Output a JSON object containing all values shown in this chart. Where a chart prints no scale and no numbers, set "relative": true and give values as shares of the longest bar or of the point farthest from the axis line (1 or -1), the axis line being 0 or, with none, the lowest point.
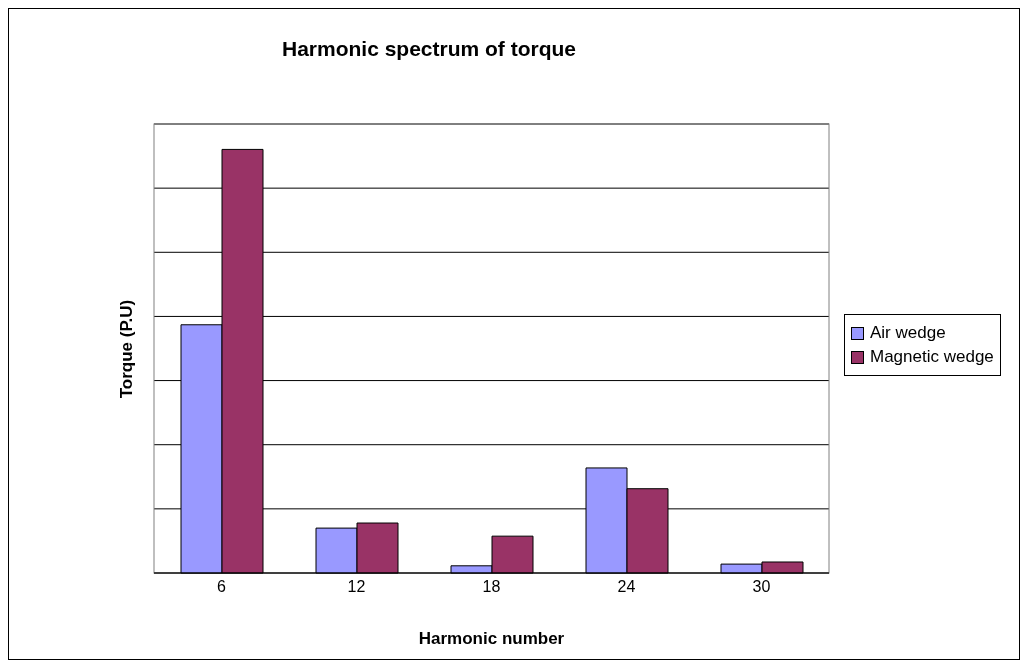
{
  "chart_data": {
    "type": "bar",
    "title": "Harmonic spectrum of torque",
    "xlabel": "Harmonic number",
    "ylabel": "Torque (P.U)",
    "categories": [
      "6",
      "12",
      "18",
      "24",
      "30"
    ],
    "relative": true,
    "grid": "y",
    "legend": "right",
    "series": [
      {
        "name": "Air wedge",
        "color": "#9999ff",
        "values": [
          0.586,
          0.106,
          0.017,
          0.248,
          0.021
        ]
      },
      {
        "name": "Magnetic wedge",
        "color": "#993366",
        "values": [
          1,
          0.118,
          0.087,
          0.199,
          0.026
        ]
      }
    ]
  }
}
